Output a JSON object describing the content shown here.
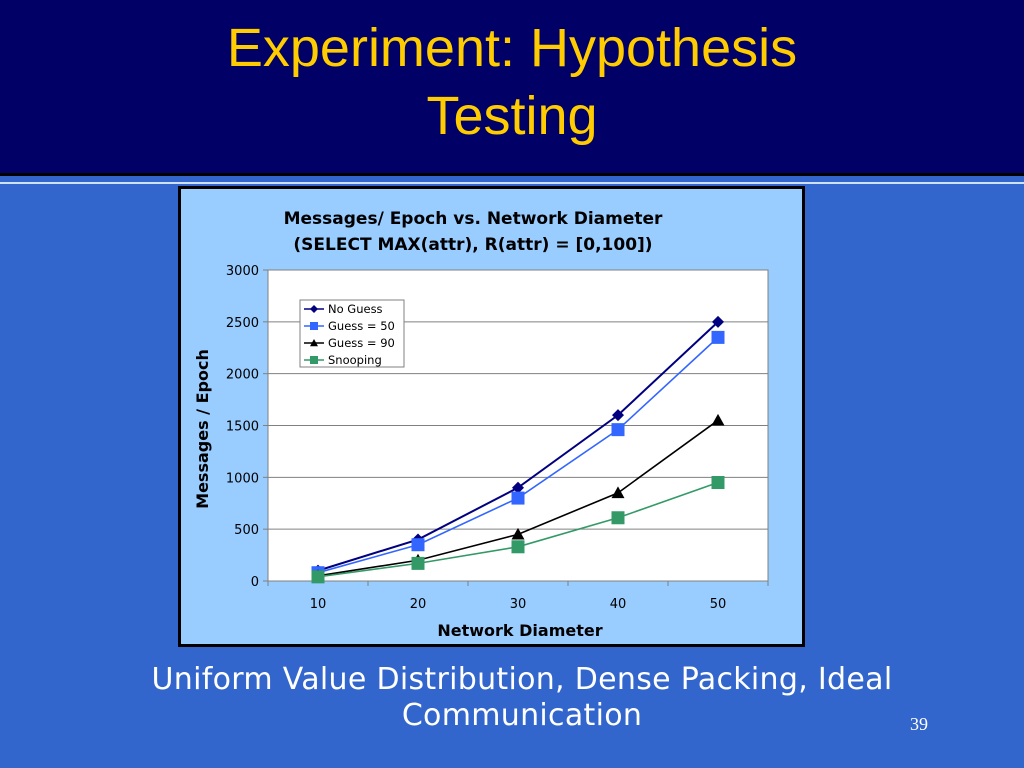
{
  "slide": {
    "title_line1": "Experiment: Hypothesis",
    "title_line2": "Testing",
    "subtitle_line1": "Uniform Value Distribution, Dense Packing, Ideal",
    "subtitle_line2": "Communication",
    "page_number": "39"
  },
  "colors": {
    "title": "#ffcc00",
    "background": "#3366cc",
    "header": "#000066",
    "chart_bg": "#99ccff"
  },
  "chart_data": {
    "type": "line",
    "title_line1": "Messages/ Epoch vs. Network Diameter",
    "title_line2": "(SELECT MAX(attr), R(attr) = [0,100])",
    "xlabel": "Network Diameter",
    "ylabel": "Messages / Epoch",
    "categories": [
      "10",
      "20",
      "30",
      "40",
      "50"
    ],
    "ylim": [
      0,
      3000
    ],
    "yticks": [
      "0",
      "500",
      "1000",
      "1500",
      "2000",
      "2500",
      "3000"
    ],
    "grid": true,
    "legend_position": "top-left",
    "series": [
      {
        "name": "No Guess",
        "values": [
          100,
          400,
          900,
          1600,
          2500
        ],
        "color": "#000080",
        "marker": "diamond"
      },
      {
        "name": "Guess = 50",
        "values": [
          80,
          350,
          800,
          1460,
          2350
        ],
        "color": "#3366ff",
        "marker": "square"
      },
      {
        "name": "Guess = 90",
        "values": [
          50,
          200,
          450,
          850,
          1550
        ],
        "color": "#000000",
        "marker": "triangle"
      },
      {
        "name": "Snooping",
        "values": [
          40,
          170,
          330,
          610,
          950
        ],
        "color": "#339966",
        "marker": "square"
      }
    ]
  }
}
